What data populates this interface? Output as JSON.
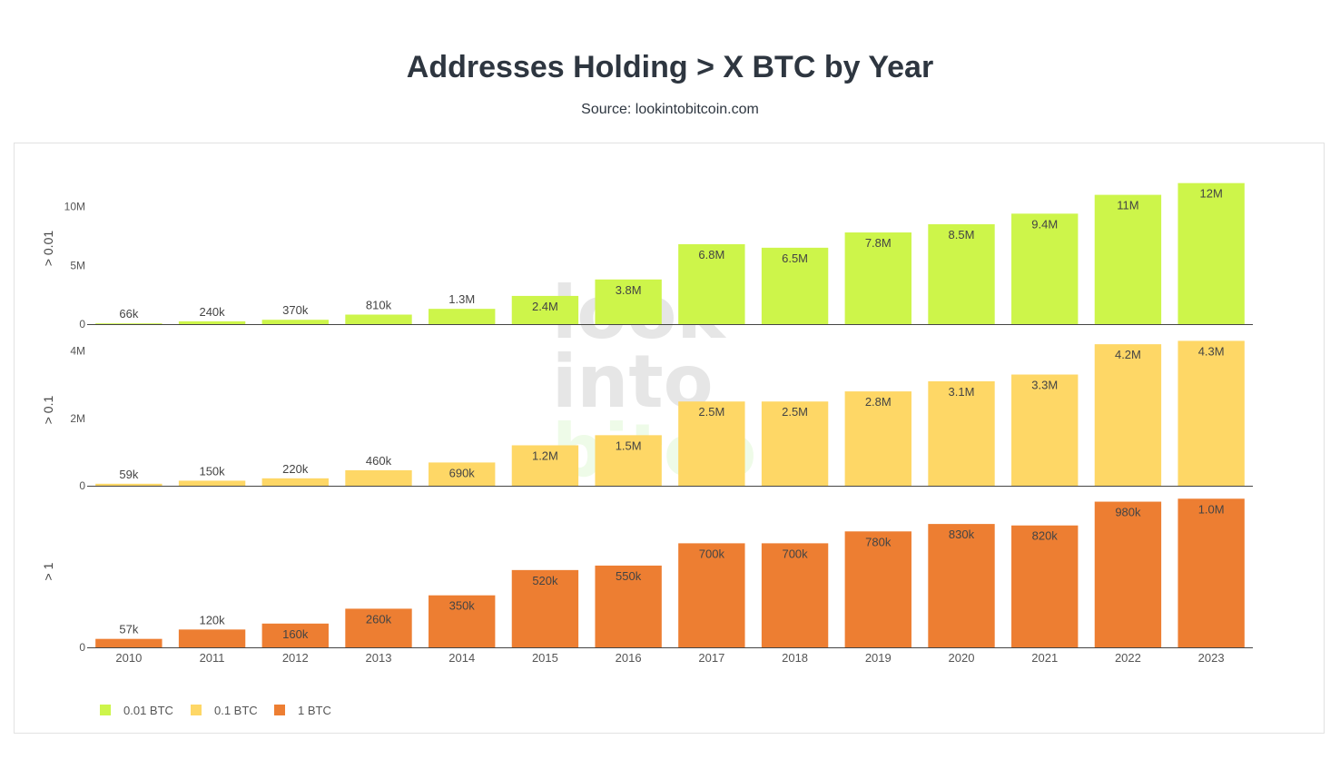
{
  "header": {
    "title": "Addresses Holding > X BTC by Year",
    "subtitle": "Source: lookintobitcoin.com"
  },
  "watermark": {
    "lines": [
      "look",
      "into",
      "bitcoin"
    ]
  },
  "colors": {
    "s001": "#cdf54a",
    "s01": "#fed766",
    "s1": "#ed7e32",
    "text": "#444444",
    "axis": "#444444"
  },
  "chart_data": {
    "type": "bar",
    "categories": [
      "2010",
      "2011",
      "2012",
      "2013",
      "2014",
      "2015",
      "2016",
      "2017",
      "2018",
      "2019",
      "2020",
      "2021",
      "2022",
      "2023"
    ],
    "series": [
      {
        "name": "0.01 BTC",
        "axis_label": "> 0.01",
        "values": [
          66000,
          240000,
          370000,
          810000,
          1300000,
          2400000,
          3800000,
          6800000,
          6500000,
          7800000,
          8500000,
          9400000,
          11000000,
          12000000
        ],
        "labels": [
          "66k",
          "240k",
          "370k",
          "810k",
          "1.3M",
          "2.4M",
          "3.8M",
          "6.8M",
          "6.5M",
          "7.8M",
          "8.5M",
          "9.4M",
          "11M",
          "12M"
        ],
        "ylim": [
          0,
          12900000
        ],
        "ticks": [
          0,
          5000000,
          10000000
        ],
        "tick_labels": [
          "0",
          "5M",
          "10M"
        ]
      },
      {
        "name": "0.1 BTC",
        "axis_label": "> 0.1",
        "values": [
          59000,
          150000,
          220000,
          460000,
          690000,
          1200000,
          1500000,
          2500000,
          2500000,
          2800000,
          3100000,
          3300000,
          4200000,
          4300000
        ],
        "labels": [
          "59k",
          "150k",
          "220k",
          "460k",
          "690k",
          "1.2M",
          "1.5M",
          "2.5M",
          "2.5M",
          "2.8M",
          "3.1M",
          "3.3M",
          "4.2M",
          "4.3M"
        ],
        "ylim": [
          0,
          4500000
        ],
        "ticks": [
          0,
          2000000,
          4000000
        ],
        "tick_labels": [
          "0",
          "2M",
          "4M"
        ]
      },
      {
        "name": "1 BTC",
        "axis_label": "> 1",
        "values": [
          57000,
          120000,
          160000,
          260000,
          350000,
          520000,
          550000,
          700000,
          700000,
          780000,
          830000,
          820000,
          980000,
          1000000
        ],
        "labels": [
          "57k",
          "120k",
          "160k",
          "260k",
          "350k",
          "520k",
          "550k",
          "700k",
          "700k",
          "780k",
          "830k",
          "820k",
          "980k",
          "1.0M"
        ],
        "ylim": [
          0,
          1020000
        ],
        "ticks": [
          0
        ],
        "tick_labels": [
          "0"
        ]
      }
    ],
    "legend_position": "bottom-left"
  }
}
